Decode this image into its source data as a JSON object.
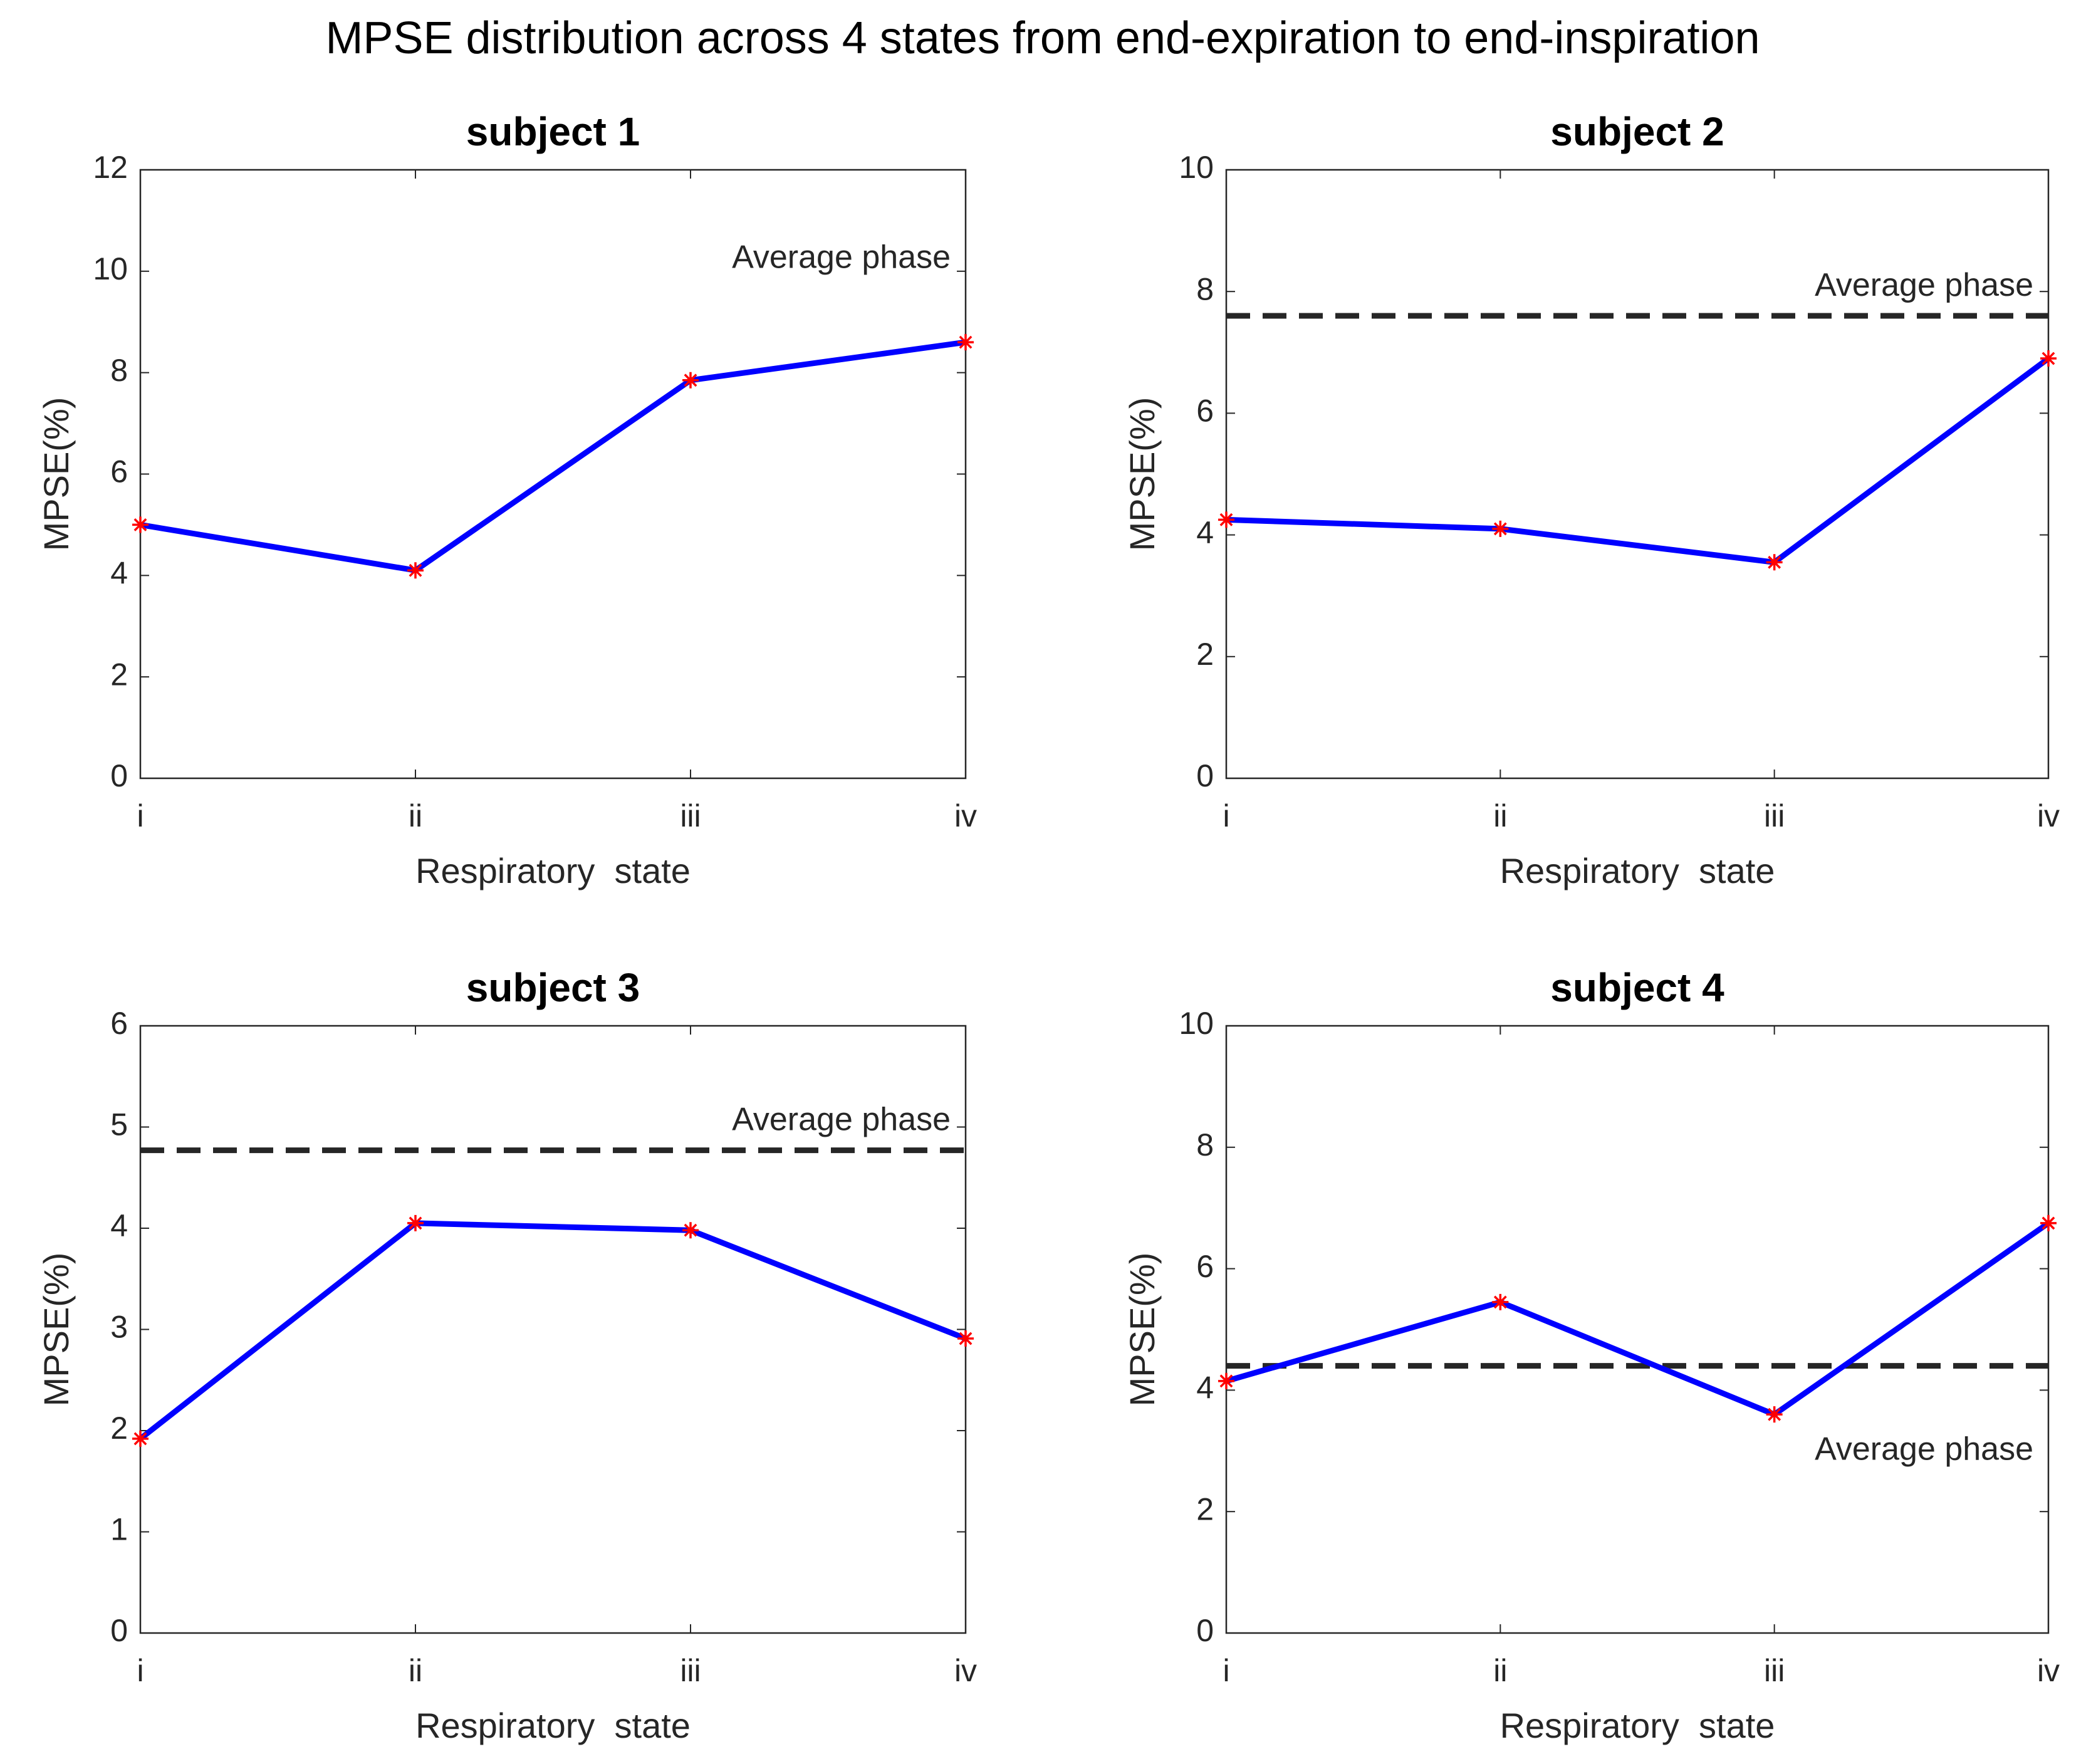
{
  "title": "MPSE distribution across 4 states from end-expiration to end-inspiration",
  "chart_data": [
    {
      "type": "line",
      "title": "subject 1",
      "x_label": "Respiratory  state",
      "y_label": "MPSE(%)",
      "categories": [
        "i",
        "ii",
        "iii",
        "iv"
      ],
      "series": [
        {
          "color": "#0000ff",
          "marker_color": "#ff0000",
          "values": [
            5.0,
            4.1,
            7.85,
            8.6
          ]
        }
      ],
      "ylim": [
        0,
        12
      ],
      "yticks": [
        0,
        2,
        4,
        6,
        8,
        10,
        12
      ],
      "annotation": "Average phase"
    },
    {
      "type": "line",
      "title": "subject 2",
      "x_label": "Respiratory  state",
      "y_label": "MPSE(%)",
      "categories": [
        "i",
        "ii",
        "iii",
        "iv"
      ],
      "series": [
        {
          "color": "#0000ff",
          "marker_color": "#ff0000",
          "values": [
            4.25,
            4.1,
            3.55,
            6.9
          ]
        }
      ],
      "ylim": [
        0,
        10
      ],
      "yticks": [
        0,
        2,
        4,
        6,
        8,
        10
      ],
      "reference_line": {
        "label": "Average phase",
        "value": 7.6,
        "label_position": "above"
      }
    },
    {
      "type": "line",
      "title": "subject 3",
      "x_label": "Respiratory  state",
      "y_label": "MPSE(%)",
      "categories": [
        "i",
        "ii",
        "iii",
        "iv"
      ],
      "series": [
        {
          "color": "#0000ff",
          "marker_color": "#ff0000",
          "values": [
            1.92,
            4.05,
            3.98,
            2.91
          ]
        }
      ],
      "ylim": [
        0,
        6
      ],
      "yticks": [
        0,
        1,
        2,
        3,
        4,
        5,
        6
      ],
      "reference_line": {
        "label": "Average phase",
        "value": 4.77,
        "label_position": "above"
      }
    },
    {
      "type": "line",
      "title": "subject 4",
      "x_label": "Respiratory  state",
      "y_label": "MPSE(%)",
      "categories": [
        "i",
        "ii",
        "iii",
        "iv"
      ],
      "series": [
        {
          "color": "#0000ff",
          "marker_color": "#ff0000",
          "values": [
            4.15,
            5.45,
            3.6,
            6.75
          ]
        }
      ],
      "ylim": [
        0,
        10
      ],
      "yticks": [
        0,
        2,
        4,
        6,
        8,
        10
      ],
      "reference_line": {
        "label": "Average phase",
        "value": 4.4,
        "label_position": "below"
      }
    }
  ]
}
